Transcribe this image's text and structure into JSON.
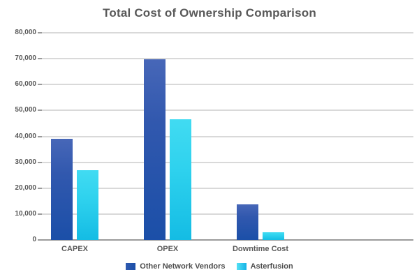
{
  "chart_data": {
    "type": "bar",
    "title": "Total Cost of Ownership Comparison",
    "categories": [
      "CAPEX",
      "OPEX",
      "Downtime Cost"
    ],
    "series": [
      {
        "name": "Other Network Vendors",
        "color_top": "#4767b8",
        "color_bottom": "#1b4fa8",
        "values": [
          39000,
          69800,
          13700
        ]
      },
      {
        "name": "Asterfusion",
        "color_top": "#41dbf2",
        "color_bottom": "#14bce4",
        "values": [
          27000,
          46500,
          3000
        ]
      }
    ],
    "xlabel": "",
    "ylabel": "",
    "ylim": [
      0,
      80000
    ],
    "ytick_step": 10000,
    "ytick_labels": [
      "0",
      "10,000",
      "20,000",
      "30,000",
      "40,000",
      "50,000",
      "60,000",
      "70,000",
      "80,000"
    ],
    "grid": true,
    "legend_position": "bottom",
    "colors": {
      "title_text": "#595959",
      "axis_text": "#595959",
      "gridline": "#d9d9d9",
      "axis_line": "#9b9b9b",
      "background": "#ffffff"
    }
  }
}
